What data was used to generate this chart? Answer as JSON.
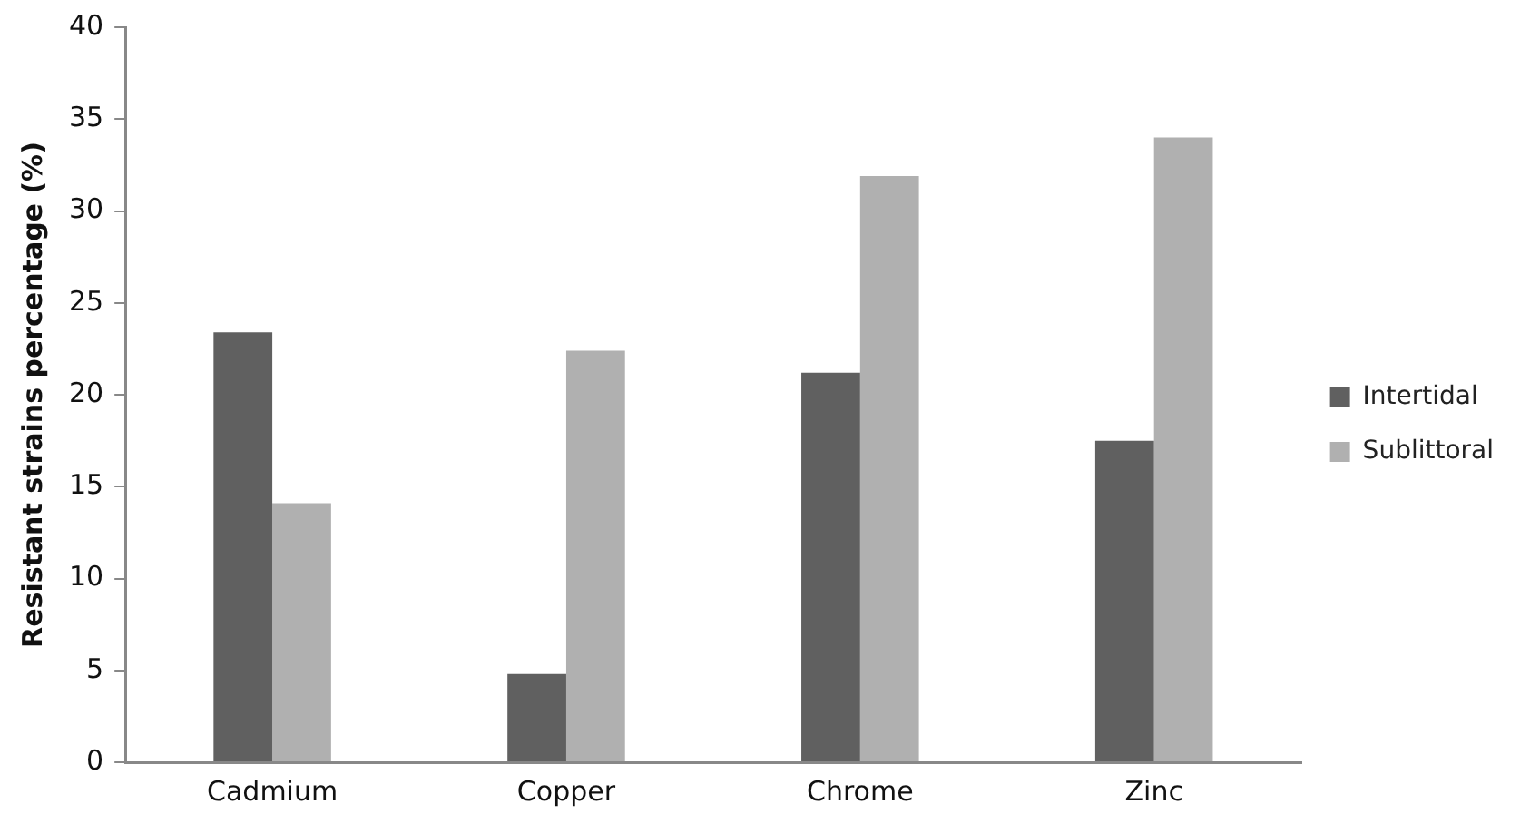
{
  "chart_data": {
    "type": "bar",
    "ylabel": "Resistant strains percentage (%)",
    "categories": [
      "Cadmium",
      "Copper",
      "Chrome",
      "Zinc"
    ],
    "series": [
      {
        "name": "Intertidal",
        "color": "#606060",
        "values": [
          23.4,
          4.8,
          21.2,
          17.5
        ]
      },
      {
        "name": "Sublittoral",
        "color": "#b0b0b0",
        "values": [
          14.1,
          22.4,
          31.9,
          34.0
        ]
      }
    ],
    "ylim": [
      0,
      40
    ],
    "yticks": [
      0,
      5,
      10,
      15,
      20,
      25,
      30,
      35,
      40
    ],
    "grid": false,
    "legend": "right"
  }
}
